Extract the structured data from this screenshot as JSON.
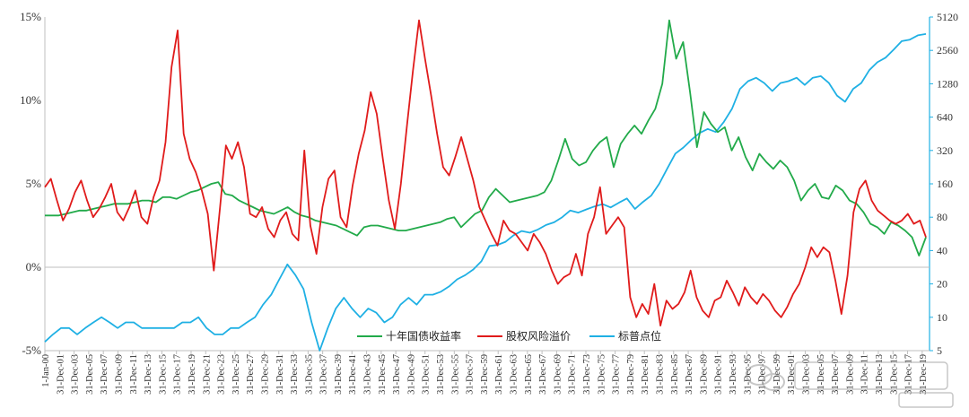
{
  "chart_data": {
    "type": "line",
    "title": "",
    "xlabel": "",
    "ylabel": "",
    "x_tick_labels": [
      "1-Jan-00",
      "31-Dec-01",
      "31-Dec-03",
      "31-Dec-05",
      "31-Dec-07",
      "31-Dec-09",
      "31-Dec-11",
      "31-Dec-13",
      "31-Dec-15",
      "31-Dec-17",
      "31-Dec-19",
      "31-Dec-21",
      "31-Dec-23",
      "31-Dec-25",
      "31-Dec-27",
      "31-Dec-29",
      "31-Dec-31",
      "31-Dec-33",
      "31-Dec-35",
      "31-Dec-37",
      "31-Dec-39",
      "31-Dec-41",
      "31-Dec-43",
      "31-Dec-45",
      "31-Dec-47",
      "31-Dec-49",
      "31-Dec-51",
      "31-Dec-53",
      "31-Dec-55",
      "31-Dec-57",
      "31-Dec-59",
      "31-Dec-61",
      "31-Dec-63",
      "31-Dec-65",
      "31-Dec-67",
      "31-Dec-69",
      "31-Dec-71",
      "31-Dec-73",
      "31-Dec-75",
      "31-Dec-77",
      "31-Dec-79",
      "31-Dec-81",
      "31-Dec-83",
      "31-Dec-85",
      "31-Dec-87",
      "31-Dec-89",
      "31-Dec-91",
      "31-Dec-93",
      "31-Dec-95",
      "31-Dec-97",
      "31-Dec-99",
      "31-Dec-01",
      "31-Dec-03",
      "31-Dec-05",
      "31-Dec-07",
      "31-Dec-09",
      "31-Dec-11",
      "31-Dec-13",
      "31-Dec-15",
      "31-Dec-17",
      "31-Dec-19"
    ],
    "left_axis": {
      "ticks": [
        "-5%",
        "0%",
        "5%",
        "10%",
        "15%"
      ],
      "ylim": [
        -5,
        15
      ],
      "unit": "%"
    },
    "right_axis": {
      "scale": "log2",
      "ticks": [
        "5",
        "10",
        "20",
        "40",
        "80",
        "160",
        "320",
        "640",
        "1280",
        "2560",
        "5120"
      ],
      "ylim": [
        5,
        5120
      ]
    },
    "grid": false,
    "legend_position": "bottom-center",
    "series": [
      {
        "name": "十年国债收益率",
        "axis": "left",
        "color": "#22aa4a",
        "values": [
          3.1,
          3.1,
          3.1,
          3.2,
          3.3,
          3.4,
          3.4,
          3.5,
          3.6,
          3.7,
          3.8,
          3.8,
          3.8,
          3.9,
          4.0,
          4.0,
          3.9,
          4.2,
          4.2,
          4.1,
          4.3,
          4.5,
          4.6,
          4.8,
          5.0,
          5.1,
          4.4,
          4.3,
          4.0,
          3.8,
          3.6,
          3.4,
          3.3,
          3.2,
          3.4,
          3.6,
          3.3,
          3.1,
          3.0,
          2.8,
          2.7,
          2.6,
          2.5,
          2.3,
          2.1,
          1.9,
          2.4,
          2.5,
          2.5,
          2.4,
          2.3,
          2.2,
          2.2,
          2.3,
          2.4,
          2.5,
          2.6,
          2.7,
          2.9,
          3.0,
          2.4,
          2.8,
          3.2,
          3.4,
          4.2,
          4.7,
          4.3,
          3.9,
          4.0,
          4.1,
          4.2,
          4.3,
          4.5,
          5.2,
          6.4,
          7.7,
          6.5,
          6.1,
          6.3,
          7.0,
          7.5,
          7.8,
          6.0,
          7.4,
          8.0,
          8.5,
          8.0,
          8.8,
          9.5,
          11.0,
          14.8,
          12.5,
          13.5,
          10.5,
          7.2,
          9.3,
          8.6,
          8.1,
          8.4,
          7.0,
          7.8,
          6.6,
          5.8,
          6.8,
          6.3,
          5.9,
          6.4,
          6.0,
          5.2,
          4.0,
          4.6,
          5.0,
          4.2,
          4.1,
          4.9,
          4.6,
          4.0,
          3.8,
          3.3,
          2.6,
          2.4,
          2.0,
          2.7,
          2.5,
          2.2,
          1.8,
          0.7,
          1.8
        ]
      },
      {
        "name": "股权风险溢价",
        "axis": "left",
        "color": "#e01b1b",
        "values": [
          4.8,
          5.3,
          4.0,
          2.8,
          3.5,
          4.5,
          5.2,
          4.0,
          3.0,
          3.5,
          4.2,
          5.0,
          3.3,
          2.8,
          3.6,
          4.6,
          3.0,
          2.6,
          4.2,
          5.2,
          7.5,
          12.0,
          14.2,
          8.0,
          6.5,
          5.7,
          4.6,
          3.2,
          -0.2,
          3.5,
          7.3,
          6.5,
          7.5,
          6.0,
          3.2,
          3.0,
          3.6,
          2.3,
          1.8,
          2.8,
          3.3,
          2.0,
          1.6,
          7.0,
          2.5,
          0.8,
          3.6,
          5.3,
          5.8,
          3.0,
          2.4,
          4.9,
          6.8,
          8.2,
          10.5,
          9.2,
          6.5,
          4.0,
          2.3,
          5.0,
          8.5,
          11.8,
          14.8,
          12.5,
          10.3,
          8.0,
          6.0,
          5.5,
          6.6,
          7.8,
          6.5,
          5.2,
          3.6,
          2.8,
          2.0,
          1.3,
          2.8,
          2.2,
          2.0,
          1.5,
          1.0,
          2.0,
          1.5,
          0.8,
          -0.2,
          -1.0,
          -0.6,
          -0.4,
          0.8,
          -0.5,
          2.0,
          3.0,
          4.8,
          2.0,
          2.5,
          3.0,
          2.4,
          -1.8,
          -3.0,
          -2.2,
          -2.8,
          -1.0,
          -3.5,
          -2.0,
          -2.5,
          -2.2,
          -1.5,
          -0.2,
          -1.8,
          -2.6,
          -3.0,
          -2.0,
          -1.8,
          -0.8,
          -1.5,
          -2.3,
          -1.2,
          -1.8,
          -2.2,
          -1.6,
          -2.0,
          -2.6,
          -3.0,
          -2.4,
          -1.6,
          -1.0,
          0.0,
          1.2,
          0.6,
          1.2,
          0.9,
          -0.8,
          -2.8,
          -0.5,
          3.3,
          4.7,
          5.2,
          4.0,
          3.4,
          3.1,
          2.8,
          2.6,
          2.8,
          3.2,
          2.6,
          2.8,
          1.8
        ]
      },
      {
        "name": "标普点位",
        "axis": "right",
        "color": "#1fb0e4",
        "values": [
          6,
          7,
          8,
          8,
          7,
          8,
          9,
          10,
          9,
          8,
          9,
          9,
          8,
          8,
          8,
          8,
          8,
          9,
          9,
          10,
          8,
          7,
          7,
          8,
          8,
          9,
          10,
          13,
          16,
          22,
          30,
          24,
          18,
          9,
          5,
          8,
          12,
          15,
          12,
          10,
          12,
          11,
          9,
          10,
          13,
          15,
          13,
          16,
          16,
          17,
          19,
          22,
          24,
          27,
          32,
          44,
          45,
          48,
          55,
          60,
          58,
          62,
          68,
          72,
          80,
          92,
          88,
          94,
          100,
          105,
          98,
          108,
          118,
          95,
          110,
          125,
          160,
          220,
          300,
          340,
          400,
          460,
          500,
          470,
          580,
          760,
          1150,
          1350,
          1450,
          1300,
          1100,
          1300,
          1350,
          1450,
          1250,
          1450,
          1500,
          1300,
          1000,
          880,
          1150,
          1300,
          1700,
          2000,
          2200,
          2600,
          3100,
          3200,
          3500,
          3600
        ]
      }
    ]
  }
}
